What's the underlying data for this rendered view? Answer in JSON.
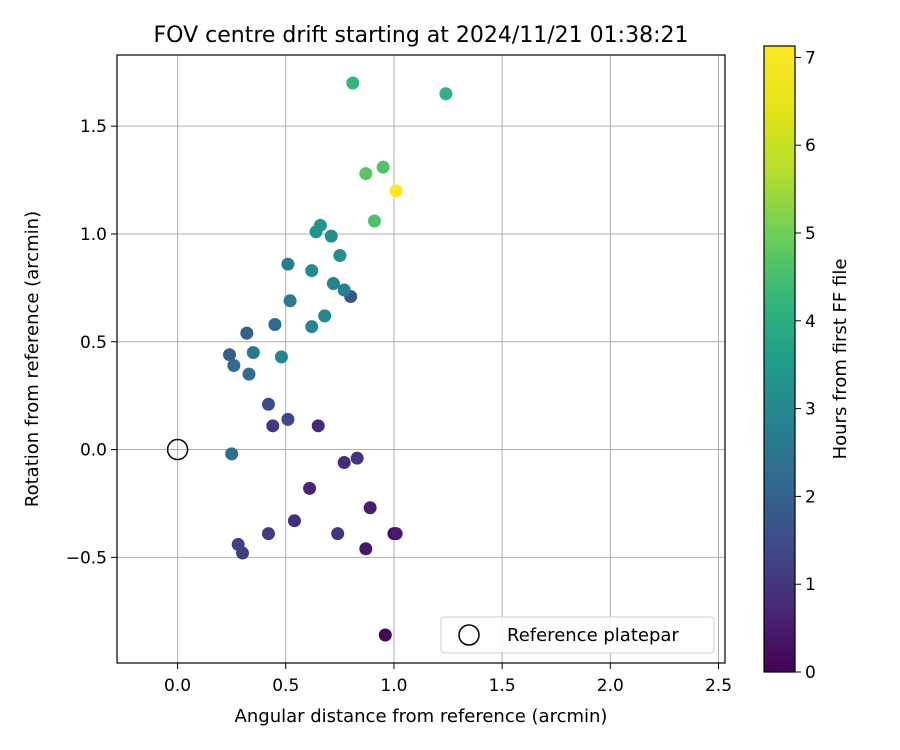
{
  "chart_data": {
    "type": "scatter",
    "title": "FOV centre drift starting at 2024/11/21 01:38:21",
    "xlabel": "Angular distance from reference (arcmin)",
    "ylabel": "Rotation from reference (arcmin)",
    "xlim": [
      -0.28,
      2.53
    ],
    "ylim": [
      -0.99,
      1.83
    ],
    "xticks": [
      0.0,
      0.5,
      1.0,
      1.5,
      2.0,
      2.5
    ],
    "xtick_labels": [
      "0.0",
      "0.5",
      "1.0",
      "1.5",
      "2.0",
      "2.5"
    ],
    "yticks": [
      -0.5,
      0.0,
      0.5,
      1.0,
      1.5
    ],
    "ytick_labels": [
      "−0.5",
      "0.0",
      "0.5",
      "1.0",
      "1.5"
    ],
    "grid": true,
    "colormap": "viridis",
    "colorbar": {
      "label": "Hours from first FF file",
      "range": [
        0,
        7.13
      ],
      "ticks": [
        0,
        1,
        2,
        3,
        4,
        5,
        6,
        7
      ],
      "tick_labels": [
        "0",
        "1",
        "2",
        "3",
        "4",
        "5",
        "6",
        "7"
      ]
    },
    "legend": {
      "placement": "lower-right",
      "entries": [
        {
          "label": "Reference platepar",
          "marker": "open-circle"
        }
      ]
    },
    "reference_point": {
      "x": 0.0,
      "y": 0.0
    },
    "points": [
      {
        "x": 0.96,
        "y": -0.86,
        "hours": 0.05
      },
      {
        "x": 1.0,
        "y": -0.39,
        "hours": 0.3
      },
      {
        "x": 1.01,
        "y": -0.39,
        "hours": 0.45
      },
      {
        "x": 0.87,
        "y": -0.46,
        "hours": 0.4
      },
      {
        "x": 0.89,
        "y": -0.27,
        "hours": 0.55
      },
      {
        "x": 0.61,
        "y": -0.18,
        "hours": 0.7
      },
      {
        "x": 0.54,
        "y": -0.33,
        "hours": 0.85
      },
      {
        "x": 0.74,
        "y": -0.39,
        "hours": 0.95
      },
      {
        "x": 0.77,
        "y": -0.06,
        "hours": 0.8
      },
      {
        "x": 0.83,
        "y": -0.04,
        "hours": 0.9
      },
      {
        "x": 0.42,
        "y": -0.39,
        "hours": 1.1
      },
      {
        "x": 0.3,
        "y": -0.48,
        "hours": 1.2
      },
      {
        "x": 0.28,
        "y": -0.44,
        "hours": 1.3
      },
      {
        "x": 0.65,
        "y": 0.11,
        "hours": 0.75
      },
      {
        "x": 0.44,
        "y": 0.11,
        "hours": 1.05
      },
      {
        "x": 0.51,
        "y": 0.14,
        "hours": 1.4
      },
      {
        "x": 0.42,
        "y": 0.21,
        "hours": 1.5
      },
      {
        "x": 0.25,
        "y": -0.02,
        "hours": 2.3
      },
      {
        "x": 0.8,
        "y": 0.71,
        "hours": 1.7
      },
      {
        "x": 0.24,
        "y": 0.44,
        "hours": 1.9
      },
      {
        "x": 0.26,
        "y": 0.39,
        "hours": 2.2
      },
      {
        "x": 0.33,
        "y": 0.35,
        "hours": 2.3
      },
      {
        "x": 0.32,
        "y": 0.54,
        "hours": 1.95
      },
      {
        "x": 0.45,
        "y": 0.58,
        "hours": 2.2
      },
      {
        "x": 0.35,
        "y": 0.45,
        "hours": 2.6
      },
      {
        "x": 0.48,
        "y": 0.43,
        "hours": 2.9
      },
      {
        "x": 0.52,
        "y": 0.69,
        "hours": 2.7
      },
      {
        "x": 0.51,
        "y": 0.86,
        "hours": 2.75
      },
      {
        "x": 0.62,
        "y": 0.57,
        "hours": 2.95
      },
      {
        "x": 0.68,
        "y": 0.62,
        "hours": 3.0
      },
      {
        "x": 0.72,
        "y": 0.77,
        "hours": 2.9
      },
      {
        "x": 0.77,
        "y": 0.74,
        "hours": 2.85
      },
      {
        "x": 0.62,
        "y": 0.83,
        "hours": 3.1
      },
      {
        "x": 0.75,
        "y": 0.9,
        "hours": 3.2
      },
      {
        "x": 0.64,
        "y": 1.01,
        "hours": 3.3
      },
      {
        "x": 0.66,
        "y": 1.04,
        "hours": 3.35
      },
      {
        "x": 0.71,
        "y": 0.99,
        "hours": 3.1
      },
      {
        "x": 0.91,
        "y": 1.06,
        "hours": 4.6
      },
      {
        "x": 0.87,
        "y": 1.28,
        "hours": 4.7
      },
      {
        "x": 0.95,
        "y": 1.31,
        "hours": 4.6
      },
      {
        "x": 1.01,
        "y": 1.2,
        "hours": 7.13
      },
      {
        "x": 0.81,
        "y": 1.7,
        "hours": 4.2
      },
      {
        "x": 1.24,
        "y": 1.65,
        "hours": 4.1
      }
    ]
  }
}
